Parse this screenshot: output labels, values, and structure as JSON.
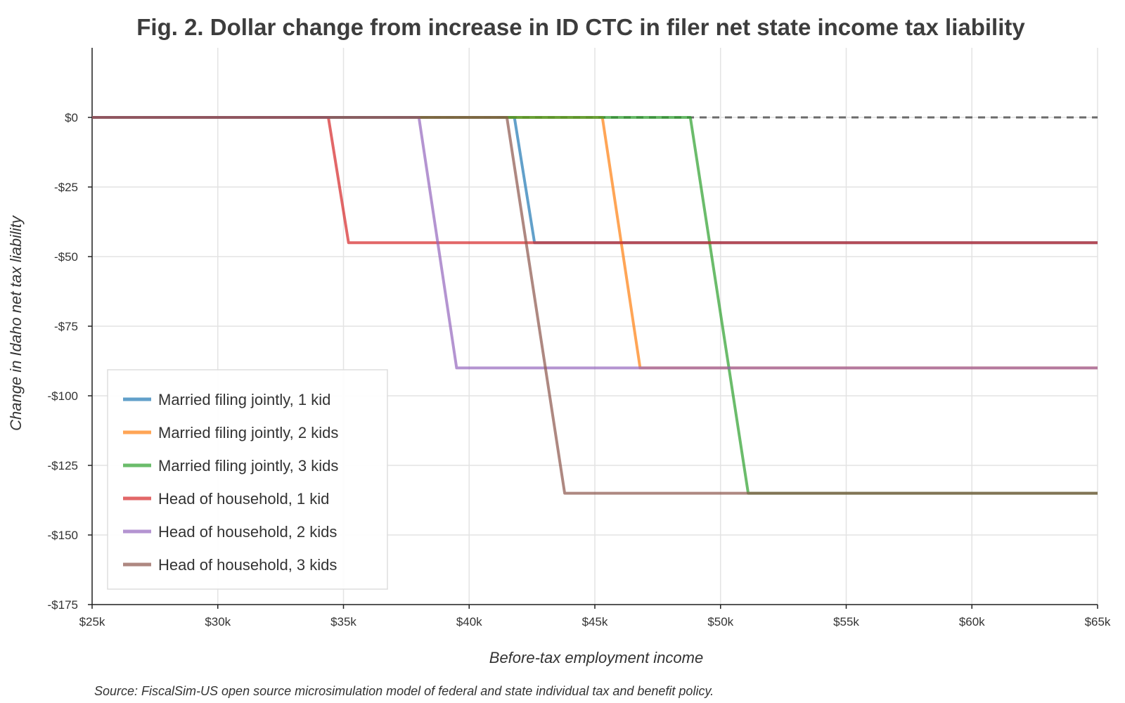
{
  "chart_data": {
    "type": "line",
    "title": "Fig. 2. Dollar change from increase in ID CTC in filer net state income tax liability",
    "xlabel": "Before-tax employment income",
    "ylabel": "Change in Idaho net tax liability",
    "source": "Source: FiscalSim-US open source microsimulation model of federal and state individual tax and benefit policy.",
    "xlim": [
      25000,
      65000
    ],
    "ylim": [
      -175,
      25
    ],
    "x_ticks": [
      25000,
      30000,
      35000,
      40000,
      45000,
      50000,
      55000,
      60000,
      65000
    ],
    "x_tick_labels": [
      "$25k",
      "$30k",
      "$35k",
      "$40k",
      "$45k",
      "$50k",
      "$55k",
      "$60k",
      "$65k"
    ],
    "y_ticks": [
      0,
      -25,
      -50,
      -75,
      -100,
      -125,
      -150,
      -175
    ],
    "y_tick_labels": [
      "$0",
      "-$25",
      "-$50",
      "-$75",
      "-$100",
      "-$125",
      "-$150",
      "-$175"
    ],
    "grid": true,
    "legend_position": "bottom-left",
    "reference_line": {
      "y": 0,
      "style": "dashed",
      "color": "#555555"
    },
    "series": [
      {
        "name": "Married filing jointly, 1 kid",
        "color": "#1f77b4",
        "x": [
          25000,
          41800,
          42600,
          65000
        ],
        "y": [
          0,
          0,
          -45,
          -45
        ]
      },
      {
        "name": "Married filing jointly, 2 kids",
        "color": "#ff7f0e",
        "x": [
          25000,
          45300,
          46800,
          65000
        ],
        "y": [
          0,
          0,
          -90,
          -90
        ]
      },
      {
        "name": "Married filing jointly, 3 kids",
        "color": "#2ca02c",
        "x": [
          25000,
          48800,
          51100,
          65000
        ],
        "y": [
          0,
          0,
          -135,
          -135
        ]
      },
      {
        "name": "Head of household, 1 kid",
        "color": "#d62728",
        "x": [
          25000,
          34400,
          35200,
          65000
        ],
        "y": [
          0,
          0,
          -45,
          -45
        ]
      },
      {
        "name": "Head of household, 2 kids",
        "color": "#9467bd",
        "x": [
          25000,
          38000,
          39500,
          65000
        ],
        "y": [
          0,
          0,
          -90,
          -90
        ]
      },
      {
        "name": "Head of household, 3 kids",
        "color": "#8c564b",
        "x": [
          25000,
          41500,
          43800,
          65000
        ],
        "y": [
          0,
          0,
          -135,
          -135
        ]
      }
    ]
  }
}
